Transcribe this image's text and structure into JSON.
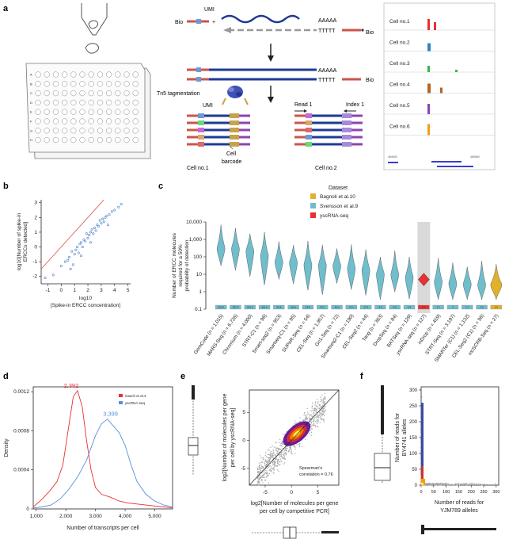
{
  "panel_labels": {
    "a": "a",
    "b": "b",
    "c": "c",
    "d": "d",
    "e": "e",
    "f": "f"
  },
  "panel_a": {
    "bio_left": "Bio",
    "umi": "UMI",
    "polyA": "AAAAA",
    "polyT": "TTTTT",
    "bio_right": "Bio",
    "tn5": "Tn5 tagmentation",
    "umi2": "UMI",
    "read1": "Read 1",
    "index1": "Index 1",
    "cell1": "Cell no.1",
    "cell_barcode_1": "Cell",
    "cell_barcode_2": "barcode",
    "cell2": "Cell no.2",
    "plate_rows": [
      "A",
      "B",
      "C",
      "D",
      "E",
      "F",
      "G",
      "H"
    ],
    "track_labels": [
      "Cell no.1",
      "Cell no.2",
      "Cell no.3",
      "Cell no.4",
      "Cell no.5",
      "Cell no.6"
    ],
    "track_colors": [
      "#e8312f",
      "#2e86c1",
      "#3cb44b",
      "#b5651d",
      "#8e44ad",
      "#f39c12"
    ],
    "axis_left": "464540",
    "axis_right": "465560"
  },
  "chart_data": [
    {
      "panel": "b",
      "type": "scatter",
      "xlabel_top": "log10",
      "xlabel": "[Spike-in ERCC concentration]",
      "ylabel_1": "log10[Number of spike-in",
      "ylabel_2": "ERCCs detected]",
      "xticks": [
        "-1",
        "0",
        "1",
        "2",
        "3",
        "4",
        "5"
      ],
      "yticks": [
        "-2",
        "-1",
        "0",
        "1",
        "2",
        "3"
      ],
      "xlim": [
        -1.5,
        5.2
      ],
      "ylim": [
        -2.5,
        3.2
      ],
      "points": [
        [
          -1.2,
          -2.1
        ],
        [
          -0.6,
          -1.9
        ],
        [
          0.0,
          -1.3
        ],
        [
          0.3,
          -1.0
        ],
        [
          0.5,
          -0.9
        ],
        [
          0.6,
          -0.7
        ],
        [
          0.8,
          -0.3
        ],
        [
          0.9,
          -1.2
        ],
        [
          1.0,
          -0.5
        ],
        [
          1.1,
          -0.2
        ],
        [
          1.2,
          0.0
        ],
        [
          1.3,
          -0.4
        ],
        [
          1.4,
          0.2
        ],
        [
          1.5,
          0.3
        ],
        [
          1.6,
          0.0
        ],
        [
          1.7,
          0.5
        ],
        [
          1.8,
          0.4
        ],
        [
          1.9,
          0.9
        ],
        [
          2.0,
          0.6
        ],
        [
          2.1,
          0.8
        ],
        [
          2.2,
          1.0
        ],
        [
          2.3,
          1.2
        ],
        [
          2.4,
          0.9
        ],
        [
          2.5,
          1.3
        ],
        [
          2.6,
          1.1
        ],
        [
          2.7,
          1.5
        ],
        [
          2.8,
          1.4
        ],
        [
          2.9,
          1.8
        ],
        [
          3.0,
          1.6
        ],
        [
          3.1,
          1.9
        ],
        [
          3.2,
          1.7
        ],
        [
          3.3,
          2.0
        ],
        [
          3.4,
          2.1
        ],
        [
          3.6,
          2.2
        ],
        [
          3.8,
          2.4
        ],
        [
          4.0,
          2.5
        ],
        [
          4.3,
          2.7
        ],
        [
          4.5,
          2.9
        ],
        [
          0.7,
          -1.5
        ],
        [
          1.5,
          -0.6
        ],
        [
          2.2,
          0.3
        ],
        [
          3.5,
          1.5
        ]
      ]
    },
    {
      "panel": "c",
      "type": "violin",
      "ylabel_1": "Number of ERCC molecules",
      "ylabel_2": "required for a 50%",
      "ylabel_3": "probability of detection",
      "yticks": [
        "0.1",
        "1",
        "10",
        "100",
        "1,000",
        "10,000"
      ],
      "legend_title": "Dataset",
      "legend": [
        {
          "name": "Bagnoli et al.10",
          "color": "#e1b12c"
        },
        {
          "name": "Svensson et al.9",
          "color": "#70bdcc"
        },
        {
          "name": "yscRNA-seq",
          "color": "#e8312f"
        }
      ],
      "categories": [
        "GemCode (n = 1,015)",
        "MARS-Seq (n = 6,726)",
        "Chromium (n = 4,000)",
        "STRT-C1 (n = 96)",
        "Smart-seq2 (n = 953)",
        "Smartseq-C1 (n = 95)",
        "SUPeR-Seq (n = 54)",
        "CEL-Seq (n = 1,957)",
        "Gn1-Seq (n = 72)",
        "Smartseq2-C1 (n = 190)",
        "CEL-Seq2 (n = 44)",
        "Tang (n = 363)",
        "DropSeq (n = 84)",
        "BATSeq (n = 129)",
        "yscRNA-seq (n = 127)",
        "inDrop (n = 459)",
        "STRT-Seq (n = 3,197)",
        "SMARTer (C1) (n = 1,132)",
        "CEL-Seq2 (C1) (n = 96)",
        "mcSCRB-Seq (n = 27)"
      ],
      "medians": [
        302.5,
        287.4,
        210.2,
        116.0,
        50.8,
        46.8,
        34.8,
        32.2,
        30.0,
        22.1,
        17.5,
        9.8,
        9.8,
        6.5,
        5.0,
        3.7,
        3.0,
        2.7,
        2.5,
        2.5
      ],
      "median_labels": [
        "302.5",
        "287.4",
        "210.2",
        "116.0",
        "50.8",
        "46.8",
        "34.8",
        "32.2",
        "30.0",
        "22.1",
        "17.5",
        "9.8",
        "9.8",
        "6.5",
        "5.0",
        "3.7",
        "3",
        "2.7",
        "2.5",
        "2.5"
      ],
      "groups": [
        "svensson",
        "svensson",
        "svensson",
        "svensson",
        "svensson",
        "svensson",
        "svensson",
        "svensson",
        "svensson",
        "svensson",
        "svensson",
        "svensson",
        "svensson",
        "svensson",
        "ysc",
        "svensson",
        "svensson",
        "svensson",
        "svensson",
        "bagnoli"
      ]
    },
    {
      "panel": "d",
      "type": "line",
      "xlabel": "Number of transcripts per cell",
      "ylabel": "Density",
      "xticks": [
        "1,000",
        "2,000",
        "3,000",
        "4,000",
        "5,000"
      ],
      "yticks": [
        "0",
        "0.0004",
        "0.0008",
        "0.0012"
      ],
      "xlim": [
        900,
        5600
      ],
      "ylim": [
        0,
        0.00125
      ],
      "series": [
        {
          "name": "Gasch et al.4",
          "color": "#e8312f",
          "peak_label": "2,392",
          "x": [
            900,
            1200,
            1500,
            1700,
            1900,
            2100,
            2250,
            2392,
            2550,
            2700,
            2850,
            3000,
            3200,
            3500,
            3800,
            4100,
            4400,
            4700,
            5000,
            5300,
            5600
          ],
          "y": [
            2e-05,
            0.0001,
            0.0002,
            0.00028,
            0.00045,
            0.00085,
            0.00115,
            0.00121,
            0.00105,
            0.0007,
            0.0004,
            0.00022,
            0.00015,
            0.00012,
            8e-05,
            6e-05,
            5e-05,
            4e-05,
            3e-05,
            2e-05,
            1e-05
          ]
        },
        {
          "name": "yscRNA-seq",
          "color": "#5a8fd8",
          "peak_label": "3,399",
          "x": [
            900,
            1200,
            1500,
            1800,
            2100,
            2400,
            2700,
            3000,
            3200,
            3399,
            3600,
            3800,
            4000,
            4200,
            4400,
            4700,
            5000,
            5300,
            5600
          ],
          "y": [
            1e-05,
            2e-05,
            4e-05,
            0.0001,
            0.0002,
            0.00033,
            0.0005,
            0.00075,
            0.00087,
            0.00092,
            0.00085,
            0.00078,
            0.00065,
            0.00045,
            0.00028,
            0.00015,
            8e-05,
            4e-05,
            2e-05
          ]
        }
      ]
    },
    {
      "panel": "e",
      "type": "scatter",
      "xlabel_1": "log2[Number of molecules per gene",
      "xlabel_2": "per cell by competitive PCR]",
      "ylabel_1": "log2[Number of molecules per gene",
      "ylabel_2": "per cell by yscRNA-seq]",
      "xticks": [
        "-5",
        "0",
        "5"
      ],
      "yticks": [
        "-5",
        "0",
        "5"
      ],
      "annotation_1": "Spearman's",
      "annotation_2": "correlation = 0.76"
    },
    {
      "panel": "f",
      "type": "scatter",
      "xlabel_1": "Number of reads for",
      "xlabel_2": "YJM789 alleles",
      "ylabel_1": "Number of reads for",
      "ylabel_2": "BY4741 alleles",
      "xticks": [
        "0",
        "50",
        "100",
        "150",
        "200",
        "250",
        "300"
      ],
      "yticks": [
        "0",
        "50",
        "100",
        "150",
        "200",
        "250",
        "300"
      ]
    }
  ]
}
